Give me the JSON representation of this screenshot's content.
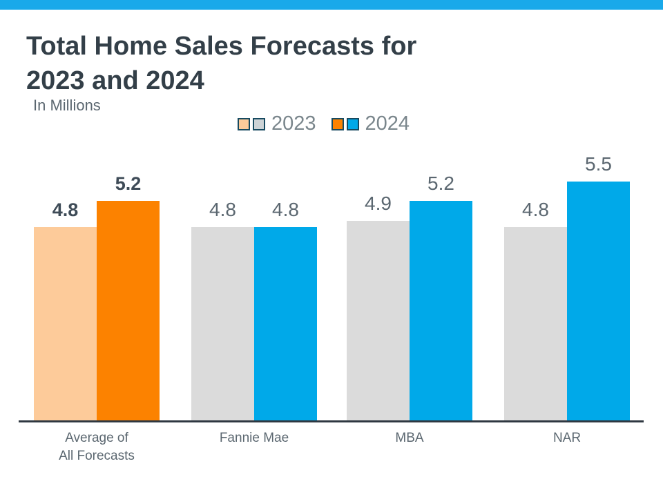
{
  "header": {
    "title_line1": "Total Home Sales Forecasts for",
    "title_line2": "2023 and 2024",
    "subtitle": "In Millions"
  },
  "legend": {
    "items": [
      {
        "label": "2023",
        "swatches": [
          "#FDCB9A",
          "#CDD3D6"
        ]
      },
      {
        "label": "2024",
        "swatches": [
          "#FC8200",
          "#00A9E9"
        ]
      }
    ],
    "swatch_border_color": "#174A60",
    "text_color": "#7A868C"
  },
  "chart_data": {
    "type": "bar",
    "title": "Total Home Sales Forecasts for 2023 and 2024",
    "ylabel": "In Millions",
    "categories": [
      "Average of\nAll Forecasts",
      "Fannie Mae",
      "MBA",
      "NAR"
    ],
    "series": [
      {
        "name": "2023",
        "values": [
          4.8,
          4.8,
          4.9,
          4.8
        ]
      },
      {
        "name": "2024",
        "values": [
          5.2,
          4.8,
          5.2,
          5.5
        ]
      }
    ],
    "highlight_group": 0,
    "colors": {
      "series_2023_default": "#DBDBDB",
      "series_2023_highlight": "#FDCB9A",
      "series_2024_default": "#00A9E9",
      "series_2024_highlight": "#FC8200",
      "axis_line": "#2F3841",
      "accent_bar": "#19A9EA"
    },
    "legend_position": "top",
    "grid": false,
    "y_axis_shown": false,
    "data_labels_shown": true
  }
}
